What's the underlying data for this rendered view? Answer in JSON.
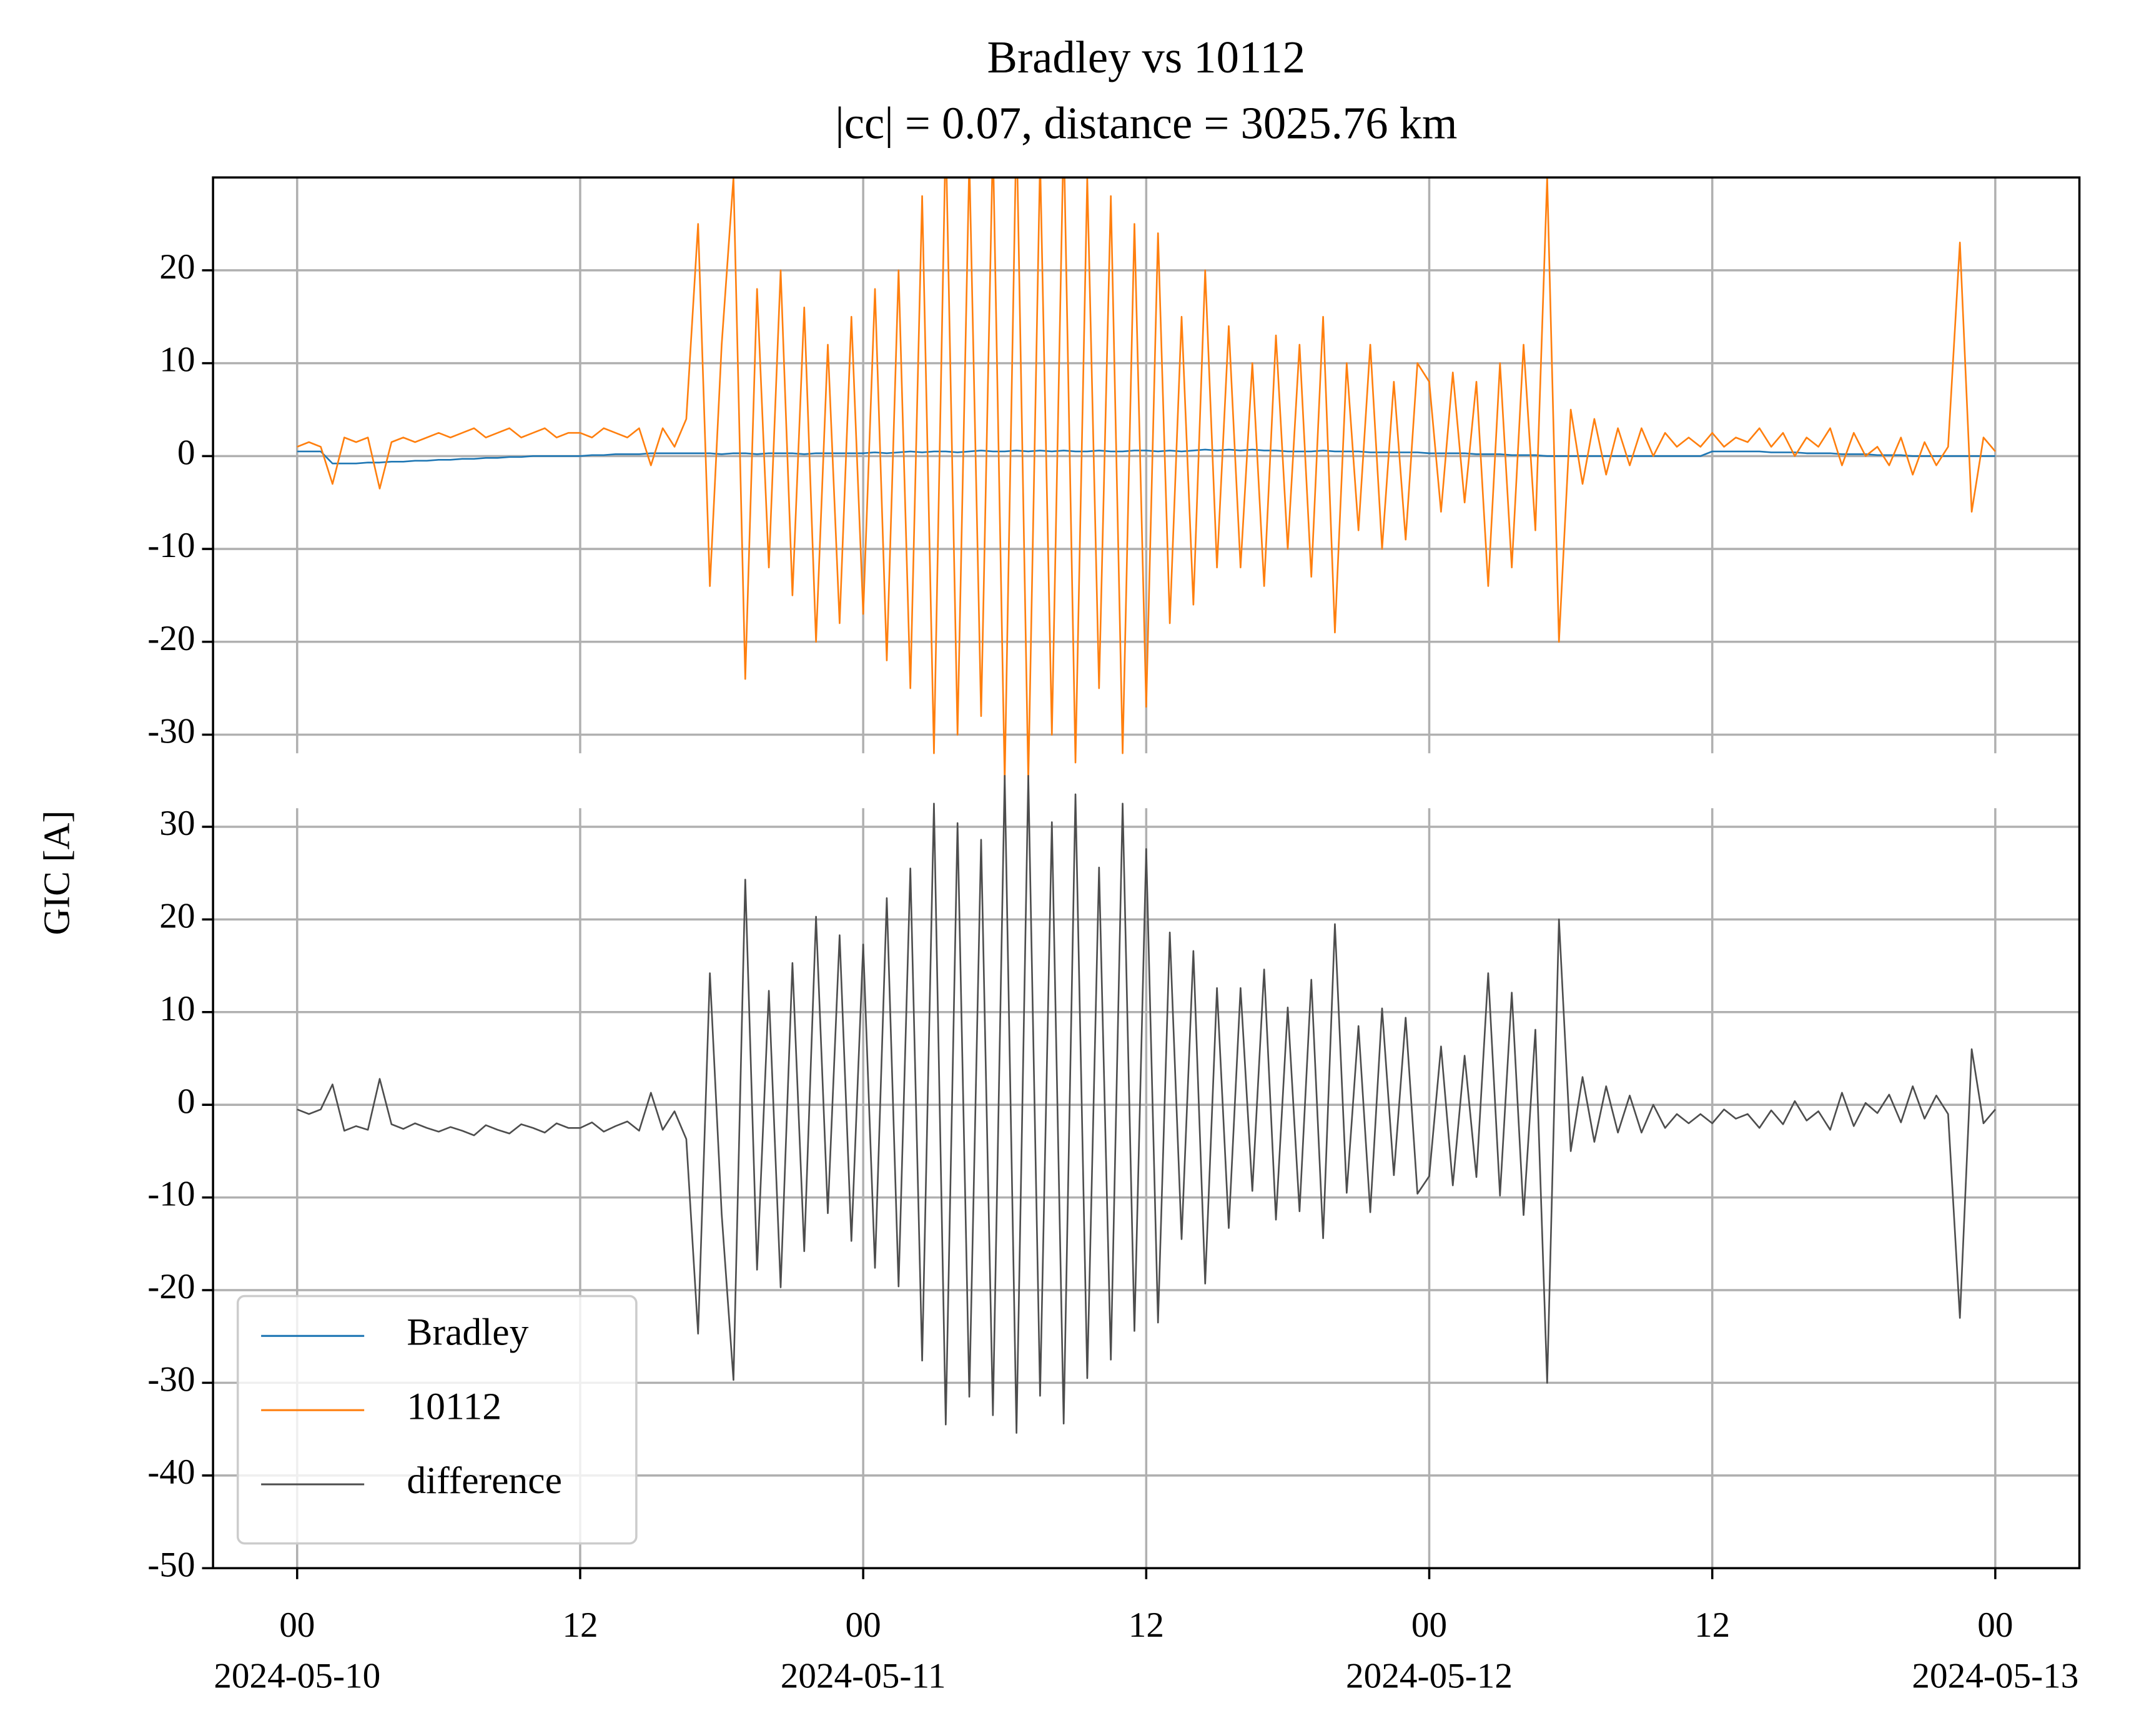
{
  "chart_data": {
    "type": "line",
    "title": "Bradley vs 10112",
    "subtitle": "|cc| = 0.07, distance = 3025.76 km",
    "ylabel": "GIC [A]",
    "grid": true,
    "legend": "lower left",
    "xlim": [
      "2024-05-09T20:26",
      "2024-05-13T03:34"
    ],
    "xticks": [
      {
        "value": "2024-05-10T00:00",
        "label": [
          "00",
          "2024-05-10"
        ]
      },
      {
        "value": "2024-05-10T12:00",
        "label": "12"
      },
      {
        "value": "2024-05-11T00:00",
        "label": [
          "00",
          "2024-05-11"
        ]
      },
      {
        "value": "2024-05-11T12:00",
        "label": "12"
      },
      {
        "value": "2024-05-12T00:00",
        "label": [
          "00",
          "2024-05-12"
        ]
      },
      {
        "value": "2024-05-12T12:00",
        "label": "12"
      },
      {
        "value": "2024-05-13T00:00",
        "label": [
          "00",
          "2024-05-13"
        ]
      }
    ],
    "x": [
      "2024-05-10T00:00",
      "2024-05-10T00:30",
      "2024-05-10T01:00",
      "2024-05-10T01:30",
      "2024-05-10T02:00",
      "2024-05-10T02:30",
      "2024-05-10T03:00",
      "2024-05-10T03:30",
      "2024-05-10T04:00",
      "2024-05-10T04:30",
      "2024-05-10T05:00",
      "2024-05-10T05:30",
      "2024-05-10T06:00",
      "2024-05-10T06:30",
      "2024-05-10T07:00",
      "2024-05-10T07:30",
      "2024-05-10T08:00",
      "2024-05-10T08:30",
      "2024-05-10T09:00",
      "2024-05-10T09:30",
      "2024-05-10T10:00",
      "2024-05-10T10:30",
      "2024-05-10T11:00",
      "2024-05-10T11:30",
      "2024-05-10T12:00",
      "2024-05-10T12:30",
      "2024-05-10T13:00",
      "2024-05-10T13:30",
      "2024-05-10T14:00",
      "2024-05-10T14:30",
      "2024-05-10T15:00",
      "2024-05-10T15:30",
      "2024-05-10T16:00",
      "2024-05-10T16:30",
      "2024-05-10T17:00",
      "2024-05-10T17:30",
      "2024-05-10T18:00",
      "2024-05-10T18:30",
      "2024-05-10T19:00",
      "2024-05-10T19:30",
      "2024-05-10T20:00",
      "2024-05-10T20:30",
      "2024-05-10T21:00",
      "2024-05-10T21:30",
      "2024-05-10T22:00",
      "2024-05-10T22:30",
      "2024-05-10T23:00",
      "2024-05-10T23:30",
      "2024-05-11T00:00",
      "2024-05-11T00:30",
      "2024-05-11T01:00",
      "2024-05-11T01:30",
      "2024-05-11T02:00",
      "2024-05-11T02:30",
      "2024-05-11T03:00",
      "2024-05-11T03:30",
      "2024-05-11T04:00",
      "2024-05-11T04:30",
      "2024-05-11T05:00",
      "2024-05-11T05:30",
      "2024-05-11T06:00",
      "2024-05-11T06:30",
      "2024-05-11T07:00",
      "2024-05-11T07:30",
      "2024-05-11T08:00",
      "2024-05-11T08:30",
      "2024-05-11T09:00",
      "2024-05-11T09:30",
      "2024-05-11T10:00",
      "2024-05-11T10:30",
      "2024-05-11T11:00",
      "2024-05-11T11:30",
      "2024-05-11T12:00",
      "2024-05-11T12:30",
      "2024-05-11T13:00",
      "2024-05-11T13:30",
      "2024-05-11T14:00",
      "2024-05-11T14:30",
      "2024-05-11T15:00",
      "2024-05-11T15:30",
      "2024-05-11T16:00",
      "2024-05-11T16:30",
      "2024-05-11T17:00",
      "2024-05-11T17:30",
      "2024-05-11T18:00",
      "2024-05-11T18:30",
      "2024-05-11T19:00",
      "2024-05-11T19:30",
      "2024-05-11T20:00",
      "2024-05-11T20:30",
      "2024-05-11T21:00",
      "2024-05-11T21:30",
      "2024-05-11T22:00",
      "2024-05-11T22:30",
      "2024-05-11T23:00",
      "2024-05-11T23:30",
      "2024-05-12T00:00",
      "2024-05-12T00:30",
      "2024-05-12T01:00",
      "2024-05-12T01:30",
      "2024-05-12T02:00",
      "2024-05-12T02:30",
      "2024-05-12T03:00",
      "2024-05-12T03:30",
      "2024-05-12T04:00",
      "2024-05-12T04:30",
      "2024-05-12T05:00",
      "2024-05-12T05:30",
      "2024-05-12T06:00",
      "2024-05-12T06:30",
      "2024-05-12T07:00",
      "2024-05-12T07:30",
      "2024-05-12T08:00",
      "2024-05-12T08:30",
      "2024-05-12T09:00",
      "2024-05-12T09:30",
      "2024-05-12T10:00",
      "2024-05-12T10:30",
      "2024-05-12T11:00",
      "2024-05-12T11:30",
      "2024-05-12T12:00",
      "2024-05-12T12:30",
      "2024-05-12T13:00",
      "2024-05-12T13:30",
      "2024-05-12T14:00",
      "2024-05-12T14:30",
      "2024-05-12T15:00",
      "2024-05-12T15:30",
      "2024-05-12T16:00",
      "2024-05-12T16:30",
      "2024-05-12T17:00",
      "2024-05-12T17:30",
      "2024-05-12T18:00",
      "2024-05-12T18:30",
      "2024-05-12T19:00",
      "2024-05-12T19:30",
      "2024-05-12T20:00",
      "2024-05-12T20:30",
      "2024-05-12T21:00",
      "2024-05-12T21:30",
      "2024-05-12T22:00",
      "2024-05-12T22:30",
      "2024-05-12T23:00",
      "2024-05-12T23:30",
      "2024-05-13T00:00"
    ],
    "panels": [
      {
        "ylim": [
          -32,
          30
        ],
        "yticks": [
          -30,
          -20,
          -10,
          0,
          10,
          20
        ],
        "series": [
          {
            "name": "Bradley",
            "color": "#1f77b4",
            "values": [
              0.5,
              0.5,
              0.5,
              -0.8,
              -0.8,
              -0.8,
              -0.7,
              -0.7,
              -0.6,
              -0.6,
              -0.5,
              -0.5,
              -0.4,
              -0.4,
              -0.3,
              -0.3,
              -0.2,
              -0.2,
              -0.1,
              -0.1,
              0,
              0,
              0,
              0,
              0,
              0.1,
              0.1,
              0.2,
              0.2,
              0.2,
              0.3,
              0.3,
              0.3,
              0.3,
              0.3,
              0.3,
              0.2,
              0.3,
              0.3,
              0.2,
              0.3,
              0.3,
              0.3,
              0.2,
              0.3,
              0.3,
              0.3,
              0.3,
              0.3,
              0.4,
              0.3,
              0.4,
              0.5,
              0.4,
              0.5,
              0.5,
              0.4,
              0.5,
              0.6,
              0.5,
              0.5,
              0.6,
              0.5,
              0.6,
              0.5,
              0.6,
              0.5,
              0.5,
              0.6,
              0.5,
              0.5,
              0.6,
              0.6,
              0.5,
              0.6,
              0.5,
              0.6,
              0.7,
              0.6,
              0.7,
              0.6,
              0.7,
              0.6,
              0.6,
              0.5,
              0.5,
              0.5,
              0.6,
              0.5,
              0.5,
              0.5,
              0.4,
              0.4,
              0.4,
              0.4,
              0.4,
              0.3,
              0.3,
              0.3,
              0.3,
              0.2,
              0.2,
              0.2,
              0.1,
              0.1,
              0.1,
              0,
              0,
              0,
              0,
              0,
              0,
              0,
              0,
              0,
              0,
              0,
              0,
              0,
              0,
              0.5,
              0.5,
              0.5,
              0.5,
              0.5,
              0.4,
              0.4,
              0.4,
              0.3,
              0.3,
              0.3,
              0.2,
              0.2,
              0.2,
              0.1,
              0.1,
              0.1,
              0,
              0,
              0,
              0,
              0,
              0,
              0,
              0
            ]
          },
          {
            "name": "10112",
            "color": "#ff7f0e",
            "values": [
              1,
              1.5,
              1,
              -3,
              2,
              1.5,
              2,
              -3.5,
              1.5,
              2,
              1.5,
              2,
              2.5,
              2,
              2.5,
              3,
              2,
              2.5,
              3,
              2,
              2.5,
              3,
              2,
              2.5,
              2.5,
              2,
              3,
              2.5,
              2,
              3,
              -1,
              3,
              1,
              4,
              25,
              -14,
              12,
              30,
              -24,
              18,
              -12,
              20,
              -15,
              16,
              -20,
              12,
              -18,
              15,
              -17,
              18,
              -22,
              20,
              -25,
              28,
              -32,
              35,
              -30,
              32,
              -28,
              34,
              -35,
              36,
              -35,
              32,
              -30,
              35,
              -33,
              30,
              -25,
              28,
              -32,
              25,
              -27,
              24,
              -18,
              15,
              -16,
              20,
              -12,
              14,
              -12,
              10,
              -14,
              13,
              -10,
              12,
              -13,
              15,
              -19,
              10,
              -8,
              12,
              -10,
              8,
              -9,
              10,
              8,
              -6,
              9,
              -5,
              8,
              -14,
              10,
              -12,
              12,
              -8,
              30,
              -20,
              5,
              -3,
              4,
              -2,
              3,
              -1,
              3,
              0,
              2.5,
              1,
              2,
              1,
              2.5,
              1,
              2,
              1.5,
              3,
              1,
              2.5,
              0,
              2,
              1,
              3,
              -1,
              2.5,
              0,
              1,
              -1,
              2,
              -2,
              1.5,
              -1,
              1,
              23,
              -6,
              2,
              0.5
            ]
          }
        ]
      },
      {
        "ylim": [
          -50,
          32
        ],
        "yticks": [
          -50,
          -40,
          -30,
          -20,
          -10,
          0,
          10,
          20,
          30
        ],
        "series": [
          {
            "name": "difference",
            "color": "#4d4d4d",
            "values": [
              -0.5,
              -1,
              -0.5,
              2.2,
              -2.8,
              -2.3,
              -2.7,
              2.8,
              -2.1,
              -2.6,
              -2,
              -2.5,
              -2.9,
              -2.4,
              -2.8,
              -3.3,
              -2.2,
              -2.7,
              -3.1,
              -2.1,
              -2.5,
              -3,
              -2,
              -2.5,
              -2.5,
              -1.9,
              -2.9,
              -2.3,
              -1.8,
              -2.8,
              1.3,
              -2.7,
              -0.7,
              -3.7,
              -24.7,
              14.2,
              -11.8,
              -29.7,
              24.3,
              -17.8,
              12.3,
              -19.7,
              15.3,
              -15.8,
              20.3,
              -11.7,
              18.3,
              -14.7,
              17.3,
              -17.6,
              22.3,
              -19.6,
              25.5,
              -27.6,
              32.5,
              -34.5,
              30.4,
              -31.5,
              28.6,
              -33.5,
              35.5,
              -35.4,
              35.5,
              -31.4,
              30.5,
              -34.4,
              33.5,
              -29.5,
              25.6,
              -27.5,
              32.5,
              -24.4,
              27.6,
              -23.5,
              18.6,
              -14.5,
              16.6,
              -19.3,
              12.6,
              -13.3,
              12.6,
              -9.3,
              14.6,
              -12.4,
              10.5,
              -11.5,
              13.5,
              -14.4,
              19.5,
              -9.5,
              8.5,
              -11.6,
              10.4,
              -7.6,
              9.4,
              -9.6,
              -7.7,
              6.3,
              -8.7,
              5.3,
              -7.8,
              14.2,
              -9.8,
              12.1,
              -11.9,
              8.1,
              -30,
              20,
              -5,
              3,
              -4,
              2,
              -3,
              1,
              -3,
              0,
              -2.5,
              -1,
              -2,
              -1,
              -2,
              -0.5,
              -1.5,
              -1,
              -2.5,
              -0.6,
              -2.1,
              0.4,
              -1.7,
              -0.7,
              -2.7,
              1.3,
              -2.3,
              0.2,
              -0.9,
              1.1,
              -1.9,
              2,
              -1.5,
              1,
              -1,
              -23,
              6,
              -2,
              -0.5
            ]
          }
        ]
      }
    ]
  }
}
